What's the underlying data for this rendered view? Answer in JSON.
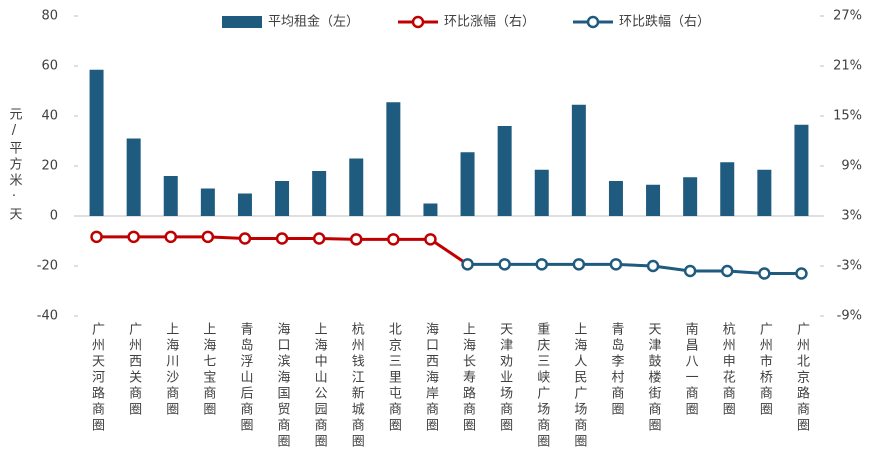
{
  "chart_data": {
    "type": "bar",
    "y_label": "元/平方米·天",
    "categories": [
      "广州天河路商圈",
      "广州西关商圈",
      "上海川沙商圈",
      "上海七宝商圈",
      "青岛浮山后商圈",
      "海口滨海国贸商圈",
      "上海中山公园商圈",
      "杭州钱江新城商圈",
      "北京三里屯商圈",
      "海口西海岸商圈",
      "上海长寿路商圈",
      "天津劝业场商圈",
      "重庆三峡广场商圈",
      "上海人民广场商圈",
      "青岛李村商圈",
      "天津鼓楼街商圈",
      "南昌八一商圈",
      "杭州申花商圈",
      "广州市桥商圈",
      "广州北京路商圈"
    ],
    "series": [
      {
        "name": "平均租金（左）",
        "type": "bar",
        "color": "#1f5b7f",
        "values": [
          58.5,
          31,
          16,
          11,
          9,
          14,
          18,
          23,
          45.5,
          5,
          25.5,
          36,
          18.5,
          44.5,
          14,
          12.5,
          15.5,
          21.5,
          18.5,
          36.5
        ]
      },
      {
        "name": "环比涨幅（右）",
        "type": "line",
        "axis": "y2",
        "color": "#c00000",
        "values": [
          0.5,
          0.5,
          0.5,
          0.5,
          0.3,
          0.3,
          0.3,
          0.2,
          0.2,
          0.2,
          null,
          null,
          null,
          null,
          null,
          null,
          null,
          null,
          null,
          null
        ]
      },
      {
        "name": "环比跌幅（右）",
        "type": "line",
        "axis": "y2",
        "color": "#1f5b7f",
        "values": [
          null,
          null,
          null,
          null,
          null,
          null,
          null,
          null,
          null,
          null,
          -2.8,
          -2.8,
          -2.8,
          -2.8,
          -2.8,
          -3.0,
          -3.6,
          -3.6,
          -3.9,
          -3.9
        ]
      }
    ],
    "ylim": [
      -40,
      80
    ],
    "yticks": [
      -40,
      -20,
      0,
      20,
      40,
      60,
      80
    ],
    "y2lim": [
      -9,
      27
    ],
    "y2ticks": [
      {
        "value": -9,
        "label": "-9%"
      },
      {
        "value": -3,
        "label": "-3%"
      },
      {
        "value": 3,
        "label": "3%"
      },
      {
        "value": 9,
        "label": "9%"
      },
      {
        "value": 15,
        "label": "15%"
      },
      {
        "value": 21,
        "label": "21%"
      },
      {
        "value": 27,
        "label": "27%"
      }
    ],
    "legend": "top"
  }
}
